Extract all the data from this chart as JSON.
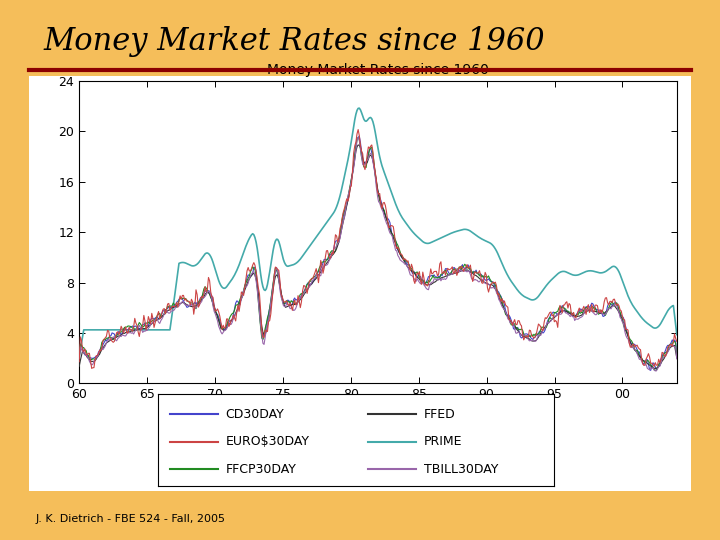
{
  "title_main": "Money Market Rates since 1960",
  "chart_title": "Money Market Rates since 1960",
  "footer": "J. K. Dietrich - FBE 524 - Fall, 2005",
  "bg_color": "#F5BE5A",
  "chart_bg": "#FFFFFF",
  "divider_color": "#8B0000",
  "xlim": [
    60,
    104
  ],
  "ylim": [
    0,
    24
  ],
  "yticks": [
    0,
    4,
    8,
    12,
    16,
    20,
    24
  ],
  "xticks": [
    60,
    65,
    70,
    75,
    80,
    85,
    90,
    95,
    100
  ],
  "xtick_labels": [
    "60",
    "65",
    "70",
    "75",
    "80",
    "85",
    "90",
    "95",
    "00"
  ],
  "series": {
    "CD30DAY": {
      "color": "#4444CC",
      "lw": 0.8
    },
    "EURO$30DAY": {
      "color": "#CC4444",
      "lw": 0.8
    },
    "FFCP30DAY": {
      "color": "#228B22",
      "lw": 0.8
    },
    "FFED": {
      "color": "#333333",
      "lw": 0.8
    },
    "PRIME": {
      "color": "#44AAAA",
      "lw": 1.2
    },
    "TBILL30DAY": {
      "color": "#9966AA",
      "lw": 0.8
    }
  }
}
